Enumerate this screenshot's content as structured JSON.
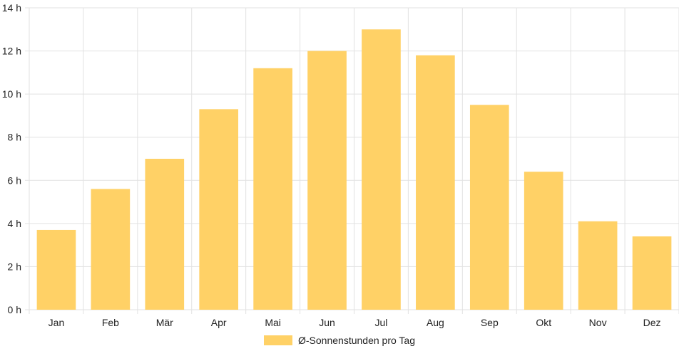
{
  "chart_data": {
    "type": "bar",
    "categories": [
      "Jan",
      "Feb",
      "Mär",
      "Apr",
      "Mai",
      "Jun",
      "Jul",
      "Aug",
      "Sep",
      "Okt",
      "Nov",
      "Dez"
    ],
    "series": [
      {
        "name": "Ø-Sonnenstunden pro Tag",
        "values": [
          3.7,
          5.6,
          7.0,
          9.3,
          11.2,
          12.0,
          13.0,
          11.8,
          9.5,
          6.4,
          4.1,
          3.4
        ]
      }
    ],
    "y_ticks": [
      "0 h",
      "2 h",
      "4 h",
      "6 h",
      "8 h",
      "10 h",
      "12 h",
      "14 h"
    ],
    "ylim": [
      0,
      14
    ],
    "grid": true,
    "legend_position": "bottom",
    "bar_color": "#FFD166",
    "grid_color": "#E2E2E2"
  }
}
